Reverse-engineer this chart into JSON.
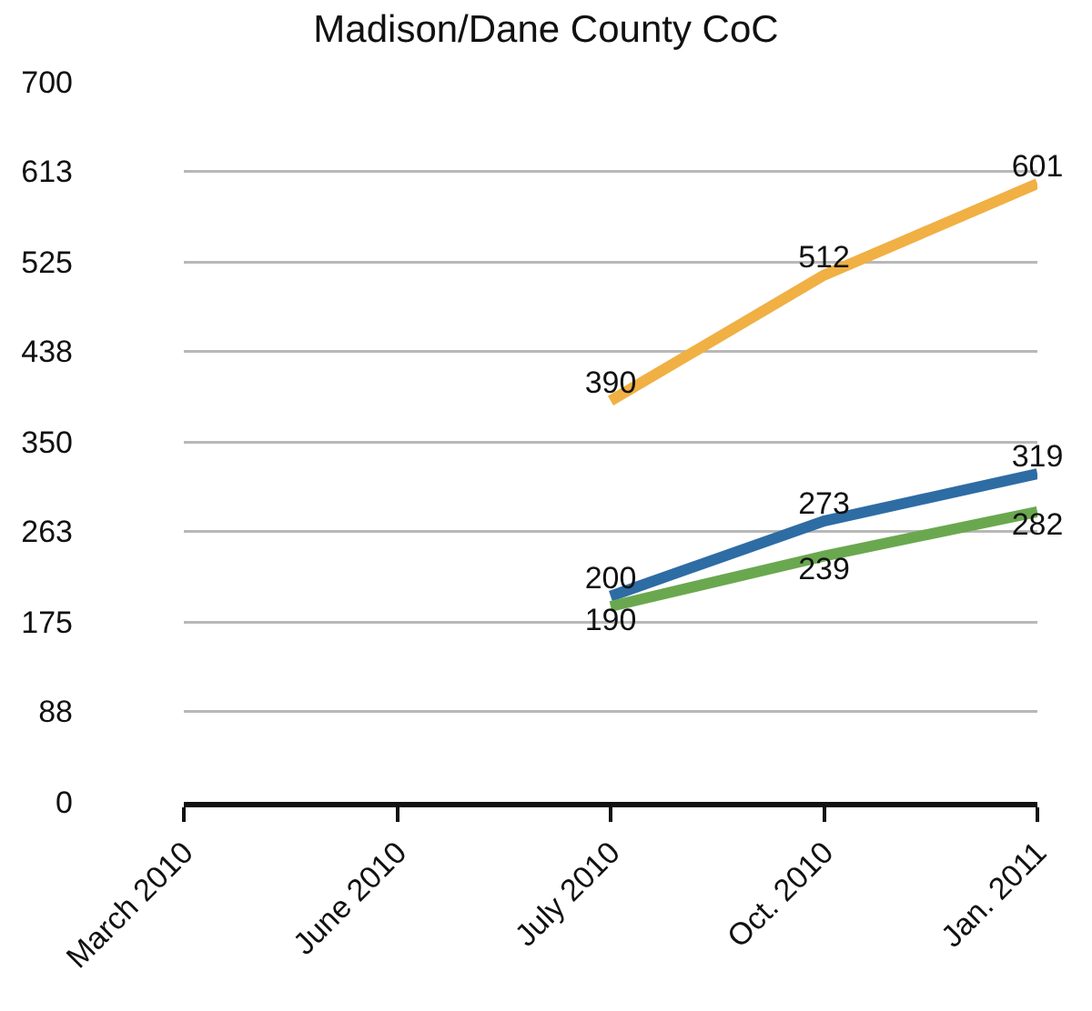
{
  "chart_data": {
    "type": "line",
    "title": "Madison/Dane County CoC",
    "categories": [
      "March 2010",
      "June 2010",
      "July 2010",
      "Oct. 2010",
      "Jan. 2011"
    ],
    "series": [
      {
        "color": "#f0b044",
        "values": [
          null,
          null,
          390,
          512,
          601
        ]
      },
      {
        "color": "#2e6ca4",
        "values": [
          null,
          null,
          200,
          273,
          319
        ]
      },
      {
        "color": "#6aa84f",
        "values": [
          null,
          null,
          190,
          239,
          282
        ]
      }
    ],
    "ylim": [
      0,
      700
    ],
    "yticks": [
      0,
      88,
      175,
      263,
      350,
      438,
      525,
      613,
      700
    ],
    "grid": "y",
    "marker": "none",
    "line_style": "solid",
    "data_labels": true
  }
}
